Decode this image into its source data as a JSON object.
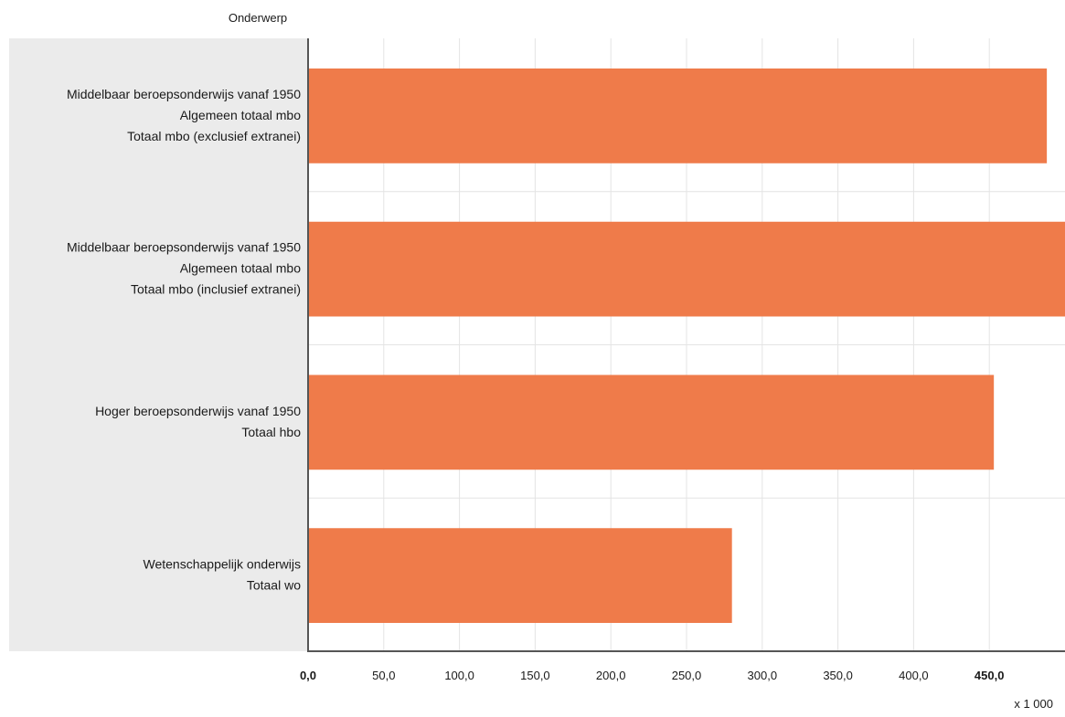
{
  "chart_data": {
    "type": "bar",
    "orientation": "horizontal",
    "dimension_label": "Onderwerp",
    "unit_label": "x 1 000",
    "xlim": [
      0,
      500
    ],
    "ticks": [
      {
        "value": 0,
        "label": "0,0",
        "bold": true
      },
      {
        "value": 50,
        "label": "50,0",
        "bold": false
      },
      {
        "value": 100,
        "label": "100,0",
        "bold": false
      },
      {
        "value": 150,
        "label": "150,0",
        "bold": false
      },
      {
        "value": 200,
        "label": "200,0",
        "bold": false
      },
      {
        "value": 250,
        "label": "250,0",
        "bold": false
      },
      {
        "value": 300,
        "label": "300,0",
        "bold": false
      },
      {
        "value": 350,
        "label": "350,0",
        "bold": false
      },
      {
        "value": 400,
        "label": "400,0",
        "bold": false
      },
      {
        "value": 450,
        "label": "450,0",
        "bold": true
      }
    ],
    "categories": [
      {
        "lines": [
          "Middelbaar beroepsonderwijs vanaf 1950",
          "Algemeen totaal mbo",
          "Totaal mbo (exclusief extranei)"
        ],
        "value": 488
      },
      {
        "lines": [
          "Middelbaar beroepsonderwijs vanaf 1950",
          "Algemeen totaal mbo",
          "Totaal mbo (inclusief extranei)"
        ],
        "value": 500
      },
      {
        "lines": [
          "Hoger beroepsonderwijs vanaf 1950",
          "Totaal hbo"
        ],
        "value": 453
      },
      {
        "lines": [
          "Wetenschappelijk onderwijs",
          "Totaal wo"
        ],
        "value": 280
      }
    ],
    "colors": {
      "bar": "#ef7b4a",
      "category_panel": "#ebebeb",
      "gridline": "#e4e4e4",
      "axis": "#555555"
    },
    "grid": true
  }
}
